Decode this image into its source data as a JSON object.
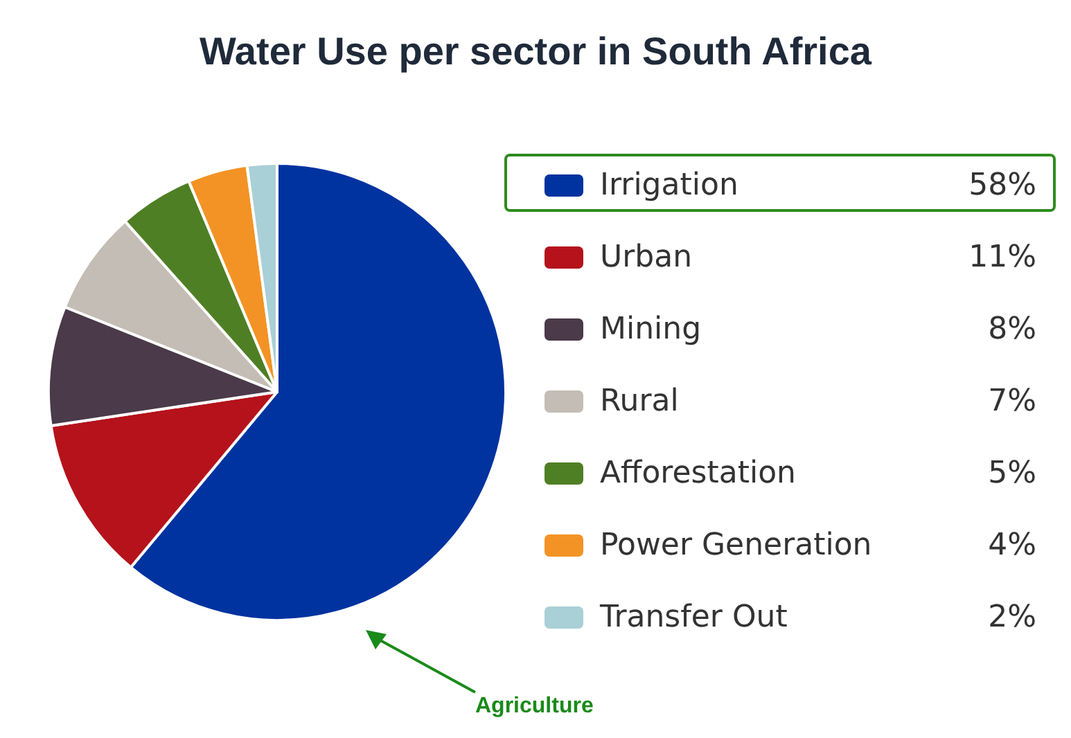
{
  "chart_data": {
    "type": "pie",
    "title": "Water Use per sector in South Africa",
    "categories": [
      "Irrigation",
      "Urban",
      "Mining",
      "Rural",
      "Afforestation",
      "Power Generation",
      "Transfer Out"
    ],
    "values": [
      58,
      11,
      8,
      7,
      5,
      4,
      2
    ],
    "value_labels": [
      "58%",
      "11%",
      "8%",
      "7%",
      "5%",
      "4%",
      "2%"
    ],
    "colors": [
      "#0033a0",
      "#b5121b",
      "#4b3a4a",
      "#c4bdb5",
      "#4f7f24",
      "#f39325",
      "#a9d0d6"
    ],
    "legend": "right",
    "annotations": [
      "Agriculture"
    ]
  }
}
